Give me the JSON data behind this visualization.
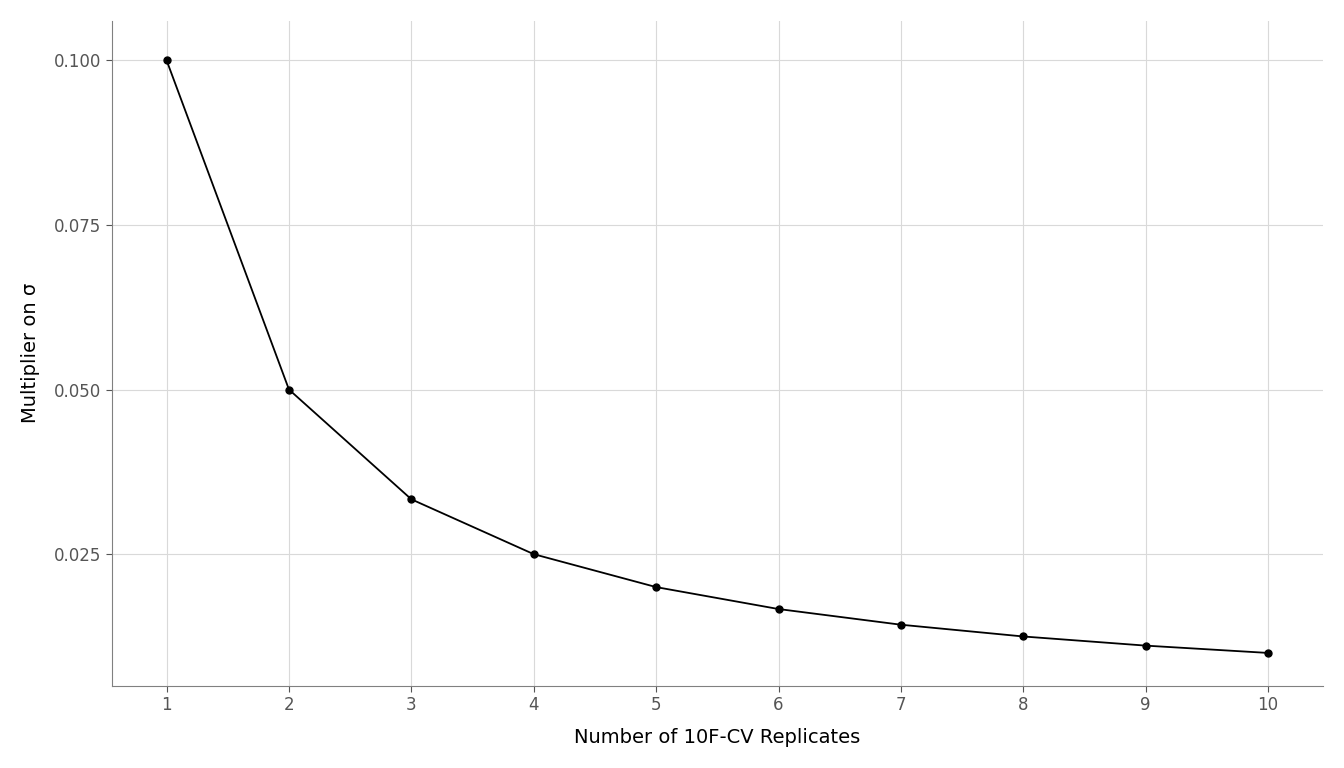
{
  "x": [
    1,
    2,
    3,
    4,
    5,
    6,
    7,
    8,
    9,
    10
  ],
  "y": [
    0.1,
    0.05,
    0.033333,
    0.025,
    0.02,
    0.016667,
    0.014286,
    0.0125,
    0.011111,
    0.01
  ],
  "xlabel": "Number of 10F-CV Replicates",
  "ylabel": "Multiplier on σ",
  "line_color": "#000000",
  "marker": "o",
  "marker_color": "#000000",
  "marker_size": 5,
  "line_width": 1.3,
  "background_color": "#ffffff",
  "panel_color": "#ffffff",
  "grid_color": "#d9d9d9",
  "spine_color": "#808080",
  "xlim": [
    0.55,
    10.45
  ],
  "ylim": [
    0.005,
    0.106
  ],
  "yticks": [
    0.025,
    0.05,
    0.075,
    0.1
  ],
  "xticks": [
    1,
    2,
    3,
    4,
    5,
    6,
    7,
    8,
    9,
    10
  ],
  "axis_label_fontsize": 14,
  "tick_fontsize": 12,
  "tick_color": "#555555"
}
